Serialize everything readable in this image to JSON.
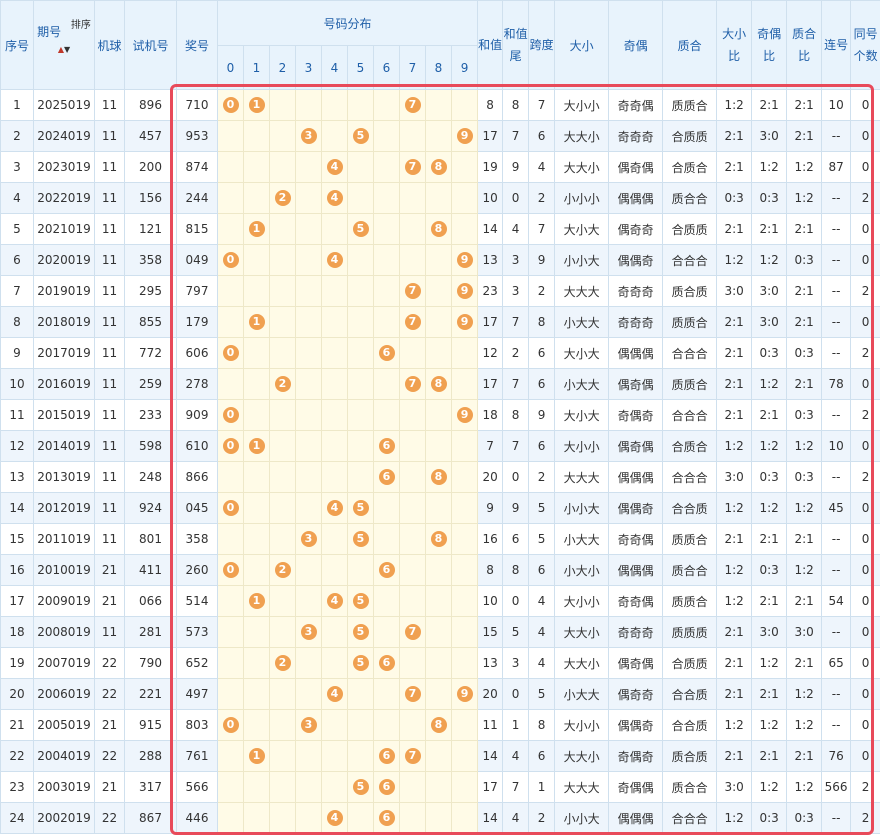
{
  "headers": {
    "seq": "序号",
    "period": "期号",
    "sort_label": "排序",
    "sort_up": "▲",
    "sort_down": "▼",
    "machine": "机球",
    "trial": "试机号",
    "prize": "奖号",
    "dist_title": "号码分布",
    "digits": [
      "0",
      "1",
      "2",
      "3",
      "4",
      "5",
      "6",
      "7",
      "8",
      "9"
    ],
    "sum": "和值",
    "sum_tail": "和值尾",
    "span": "跨度",
    "bigsmall": "大小",
    "oddeven": "奇偶",
    "primecomp": "质合",
    "bs_ratio": "大小比",
    "oe_ratio": "奇偶比",
    "pc_ratio": "质合比",
    "consec": "连号",
    "same_count": "同号个数"
  },
  "rows": [
    {
      "seq": "1",
      "period": "2025019",
      "machine": "11",
      "trial": "896",
      "prize": "710",
      "sum": "8",
      "tail": "8",
      "span": "7",
      "bs": "大小小",
      "oe": "奇奇偶",
      "pc": "质质合",
      "bsr": "1:2",
      "oer": "2:1",
      "pcr": "2:1",
      "consec": "10",
      "same": "0"
    },
    {
      "seq": "2",
      "period": "2024019",
      "machine": "11",
      "trial": "457",
      "prize": "953",
      "sum": "17",
      "tail": "7",
      "span": "6",
      "bs": "大大小",
      "oe": "奇奇奇",
      "pc": "合质质",
      "bsr": "2:1",
      "oer": "3:0",
      "pcr": "2:1",
      "consec": "--",
      "same": "0"
    },
    {
      "seq": "3",
      "period": "2023019",
      "machine": "11",
      "trial": "200",
      "prize": "874",
      "sum": "19",
      "tail": "9",
      "span": "4",
      "bs": "大大小",
      "oe": "偶奇偶",
      "pc": "合质合",
      "bsr": "2:1",
      "oer": "1:2",
      "pcr": "1:2",
      "consec": "87",
      "same": "0"
    },
    {
      "seq": "4",
      "period": "2022019",
      "machine": "11",
      "trial": "156",
      "prize": "244",
      "sum": "10",
      "tail": "0",
      "span": "2",
      "bs": "小小小",
      "oe": "偶偶偶",
      "pc": "质合合",
      "bsr": "0:3",
      "oer": "0:3",
      "pcr": "1:2",
      "consec": "--",
      "same": "2"
    },
    {
      "seq": "5",
      "period": "2021019",
      "machine": "11",
      "trial": "121",
      "prize": "815",
      "sum": "14",
      "tail": "4",
      "span": "7",
      "bs": "大小大",
      "oe": "偶奇奇",
      "pc": "合质质",
      "bsr": "2:1",
      "oer": "2:1",
      "pcr": "2:1",
      "consec": "--",
      "same": "0"
    },
    {
      "seq": "6",
      "period": "2020019",
      "machine": "11",
      "trial": "358",
      "prize": "049",
      "sum": "13",
      "tail": "3",
      "span": "9",
      "bs": "小小大",
      "oe": "偶偶奇",
      "pc": "合合合",
      "bsr": "1:2",
      "oer": "1:2",
      "pcr": "0:3",
      "consec": "--",
      "same": "0"
    },
    {
      "seq": "7",
      "period": "2019019",
      "machine": "11",
      "trial": "295",
      "prize": "797",
      "sum": "23",
      "tail": "3",
      "span": "2",
      "bs": "大大大",
      "oe": "奇奇奇",
      "pc": "质合质",
      "bsr": "3:0",
      "oer": "3:0",
      "pcr": "2:1",
      "consec": "--",
      "same": "2"
    },
    {
      "seq": "8",
      "period": "2018019",
      "machine": "11",
      "trial": "855",
      "prize": "179",
      "sum": "17",
      "tail": "7",
      "span": "8",
      "bs": "小大大",
      "oe": "奇奇奇",
      "pc": "质质合",
      "bsr": "2:1",
      "oer": "3:0",
      "pcr": "2:1",
      "consec": "--",
      "same": "0"
    },
    {
      "seq": "9",
      "period": "2017019",
      "machine": "11",
      "trial": "772",
      "prize": "606",
      "sum": "12",
      "tail": "2",
      "span": "6",
      "bs": "大小大",
      "oe": "偶偶偶",
      "pc": "合合合",
      "bsr": "2:1",
      "oer": "0:3",
      "pcr": "0:3",
      "consec": "--",
      "same": "2"
    },
    {
      "seq": "10",
      "period": "2016019",
      "machine": "11",
      "trial": "259",
      "prize": "278",
      "sum": "17",
      "tail": "7",
      "span": "6",
      "bs": "小大大",
      "oe": "偶奇偶",
      "pc": "质质合",
      "bsr": "2:1",
      "oer": "1:2",
      "pcr": "2:1",
      "consec": "78",
      "same": "0"
    },
    {
      "seq": "11",
      "period": "2015019",
      "machine": "11",
      "trial": "233",
      "prize": "909",
      "sum": "18",
      "tail": "8",
      "span": "9",
      "bs": "大小大",
      "oe": "奇偶奇",
      "pc": "合合合",
      "bsr": "2:1",
      "oer": "2:1",
      "pcr": "0:3",
      "consec": "--",
      "same": "2"
    },
    {
      "seq": "12",
      "period": "2014019",
      "machine": "11",
      "trial": "598",
      "prize": "610",
      "sum": "7",
      "tail": "7",
      "span": "6",
      "bs": "大小小",
      "oe": "偶奇偶",
      "pc": "合质合",
      "bsr": "1:2",
      "oer": "1:2",
      "pcr": "1:2",
      "consec": "10",
      "same": "0"
    },
    {
      "seq": "13",
      "period": "2013019",
      "machine": "11",
      "trial": "248",
      "prize": "866",
      "sum": "20",
      "tail": "0",
      "span": "2",
      "bs": "大大大",
      "oe": "偶偶偶",
      "pc": "合合合",
      "bsr": "3:0",
      "oer": "0:3",
      "pcr": "0:3",
      "consec": "--",
      "same": "2"
    },
    {
      "seq": "14",
      "period": "2012019",
      "machine": "11",
      "trial": "924",
      "prize": "045",
      "sum": "9",
      "tail": "9",
      "span": "5",
      "bs": "小小大",
      "oe": "偶偶奇",
      "pc": "合合质",
      "bsr": "1:2",
      "oer": "1:2",
      "pcr": "1:2",
      "consec": "45",
      "same": "0"
    },
    {
      "seq": "15",
      "period": "2011019",
      "machine": "11",
      "trial": "801",
      "prize": "358",
      "sum": "16",
      "tail": "6",
      "span": "5",
      "bs": "小大大",
      "oe": "奇奇偶",
      "pc": "质质合",
      "bsr": "2:1",
      "oer": "2:1",
      "pcr": "2:1",
      "consec": "--",
      "same": "0"
    },
    {
      "seq": "16",
      "period": "2010019",
      "machine": "21",
      "trial": "411",
      "prize": "260",
      "sum": "8",
      "tail": "8",
      "span": "6",
      "bs": "小大小",
      "oe": "偶偶偶",
      "pc": "质合合",
      "bsr": "1:2",
      "oer": "0:3",
      "pcr": "1:2",
      "consec": "--",
      "same": "0"
    },
    {
      "seq": "17",
      "period": "2009019",
      "machine": "21",
      "trial": "066",
      "prize": "514",
      "sum": "10",
      "tail": "0",
      "span": "4",
      "bs": "大小小",
      "oe": "奇奇偶",
      "pc": "质质合",
      "bsr": "1:2",
      "oer": "2:1",
      "pcr": "2:1",
      "consec": "54",
      "same": "0"
    },
    {
      "seq": "18",
      "period": "2008019",
      "machine": "11",
      "trial": "281",
      "prize": "573",
      "sum": "15",
      "tail": "5",
      "span": "4",
      "bs": "大大小",
      "oe": "奇奇奇",
      "pc": "质质质",
      "bsr": "2:1",
      "oer": "3:0",
      "pcr": "3:0",
      "consec": "--",
      "same": "0"
    },
    {
      "seq": "19",
      "period": "2007019",
      "machine": "22",
      "trial": "790",
      "prize": "652",
      "sum": "13",
      "tail": "3",
      "span": "4",
      "bs": "大大小",
      "oe": "偶奇偶",
      "pc": "合质质",
      "bsr": "2:1",
      "oer": "1:2",
      "pcr": "2:1",
      "consec": "65",
      "same": "0"
    },
    {
      "seq": "20",
      "period": "2006019",
      "machine": "22",
      "trial": "221",
      "prize": "497",
      "sum": "20",
      "tail": "0",
      "span": "5",
      "bs": "小大大",
      "oe": "偶奇奇",
      "pc": "合合质",
      "bsr": "2:1",
      "oer": "2:1",
      "pcr": "1:2",
      "consec": "--",
      "same": "0"
    },
    {
      "seq": "21",
      "period": "2005019",
      "machine": "21",
      "trial": "915",
      "prize": "803",
      "sum": "11",
      "tail": "1",
      "span": "8",
      "bs": "大小小",
      "oe": "偶偶奇",
      "pc": "合合质",
      "bsr": "1:2",
      "oer": "1:2",
      "pcr": "1:2",
      "consec": "--",
      "same": "0"
    },
    {
      "seq": "22",
      "period": "2004019",
      "machine": "22",
      "trial": "288",
      "prize": "761",
      "sum": "14",
      "tail": "4",
      "span": "6",
      "bs": "大大小",
      "oe": "奇偶奇",
      "pc": "质合质",
      "bsr": "2:1",
      "oer": "2:1",
      "pcr": "2:1",
      "consec": "76",
      "same": "0"
    },
    {
      "seq": "23",
      "period": "2003019",
      "machine": "21",
      "trial": "317",
      "prize": "566",
      "sum": "17",
      "tail": "7",
      "span": "1",
      "bs": "大大大",
      "oe": "奇偶偶",
      "pc": "质合合",
      "bsr": "3:0",
      "oer": "1:2",
      "pcr": "1:2",
      "consec": "566",
      "same": "2"
    },
    {
      "seq": "24",
      "period": "2002019",
      "machine": "22",
      "trial": "867",
      "prize": "446",
      "sum": "14",
      "tail": "4",
      "span": "2",
      "bs": "小小大",
      "oe": "偶偶偶",
      "pc": "合合合",
      "bsr": "1:2",
      "oer": "0:3",
      "pcr": "0:3",
      "consec": "--",
      "same": "2"
    }
  ]
}
